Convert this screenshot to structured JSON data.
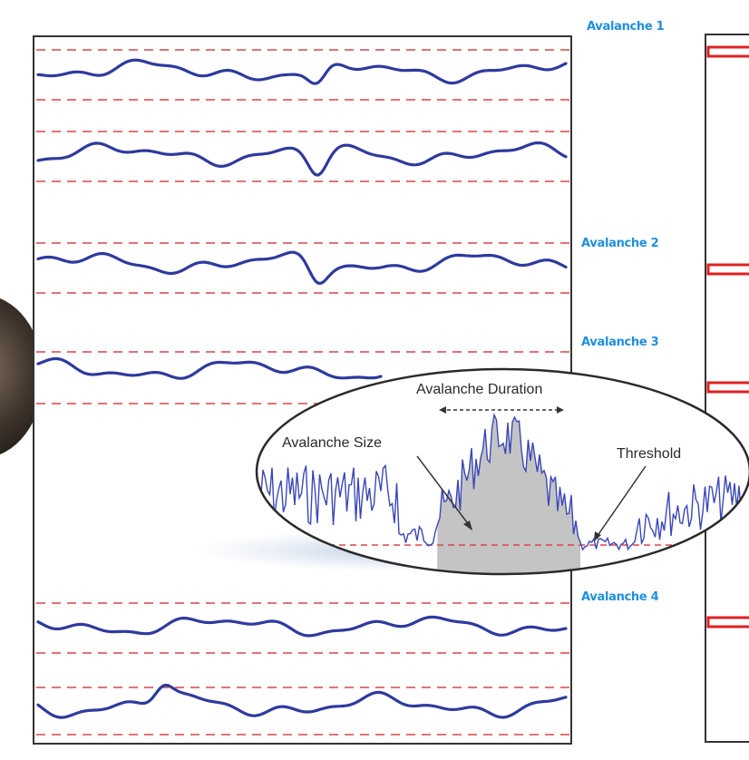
{
  "avalanche_labels": [
    "Avalanche 1",
    "Avalanche 2",
    "Avalanche 3",
    "Avalanche 4"
  ],
  "zoom": {
    "duration_label": "Avalanche Duration",
    "size_label": "Avalanche Size",
    "threshold_label": "Threshold"
  },
  "colors": {
    "signal": "#2e3a9e",
    "threshold": "#d9454b",
    "label": "#1f8fdc",
    "event_marker": "#e02020",
    "avalanche_fill": "#c4c4c4",
    "frame": "#333333"
  }
}
